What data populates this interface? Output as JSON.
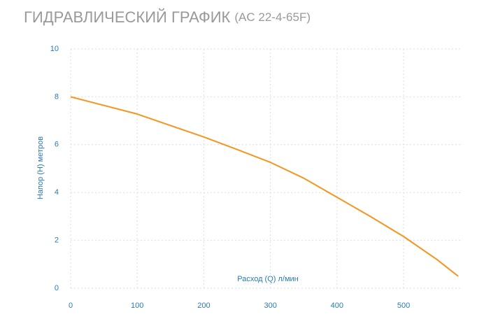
{
  "chart_data": {
    "type": "line",
    "title": "ГИДРАВЛИЧЕСКИЙ ГРАФИК",
    "subtitle": "(AC 22-4-65F)",
    "x_label": "Расход (Q) л/мин",
    "y_label": "Напор (H) метров",
    "x": [
      0,
      100,
      200,
      250,
      300,
      350,
      400,
      450,
      500,
      550,
      582
    ],
    "series": [
      {
        "name": "AC 22-4-65F",
        "color": "#f7941d",
        "values": [
          8,
          7.28,
          6.32,
          5.8,
          5.26,
          4.6,
          3.8,
          3.0,
          2.16,
          1.2,
          0.5
        ]
      }
    ],
    "xlim": [
      0,
      585
    ],
    "ylim": [
      0,
      10
    ],
    "xticks": [
      0,
      100,
      200,
      300,
      400,
      500
    ],
    "yticks": [
      0,
      2,
      4,
      6,
      8,
      10
    ],
    "grid": true
  }
}
